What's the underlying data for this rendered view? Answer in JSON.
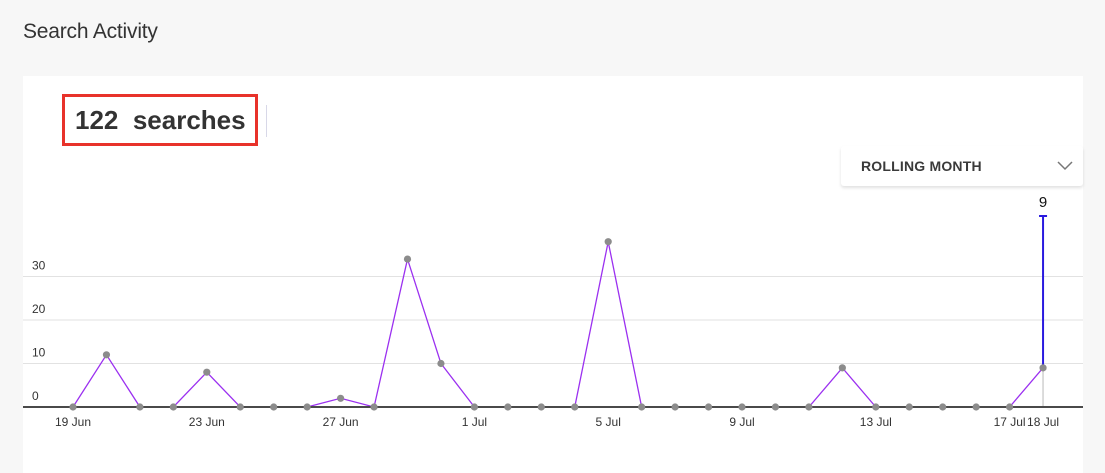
{
  "page": {
    "title": "Search Activity"
  },
  "summary": {
    "count": "122",
    "unit": "searches"
  },
  "period_select": {
    "selected": "ROLLING MONTH",
    "icon": "chevron-down-icon"
  },
  "colors": {
    "line": "#9b30f0",
    "point": "#8c8c8c",
    "highlight": "#2a1adf",
    "count_border": "#e8322a"
  },
  "chart_data": {
    "type": "line",
    "title": "",
    "xlabel": "",
    "ylabel": "",
    "ylim": [
      0,
      36
    ],
    "yticks": [
      0,
      10,
      20,
      30
    ],
    "grid": true,
    "x": [
      "19 Jun",
      "20 Jun",
      "21 Jun",
      "22 Jun",
      "23 Jun",
      "24 Jun",
      "25 Jun",
      "26 Jun",
      "27 Jun",
      "28 Jun",
      "29 Jun",
      "30 Jun",
      "1 Jul",
      "2 Jul",
      "3 Jul",
      "4 Jul",
      "5 Jul",
      "6 Jul",
      "7 Jul",
      "8 Jul",
      "9 Jul",
      "10 Jul",
      "11 Jul",
      "12 Jul",
      "13 Jul",
      "14 Jul",
      "15 Jul",
      "16 Jul",
      "17 Jul",
      "18 Jul"
    ],
    "xtick_labels": [
      "19 Jun",
      "23 Jun",
      "27 Jun",
      "1 Jul",
      "5 Jul",
      "9 Jul",
      "13 Jul",
      "17 Jul",
      "18 Jul"
    ],
    "series": [
      {
        "values": [
          0,
          12,
          0,
          0,
          8,
          0,
          0,
          0,
          2,
          0,
          34,
          10,
          0,
          0,
          0,
          0,
          38,
          0,
          0,
          0,
          0,
          0,
          0,
          9,
          0,
          0,
          0,
          0,
          0,
          9
        ]
      }
    ],
    "highlight": {
      "x": "18 Jul",
      "label": "9"
    }
  }
}
